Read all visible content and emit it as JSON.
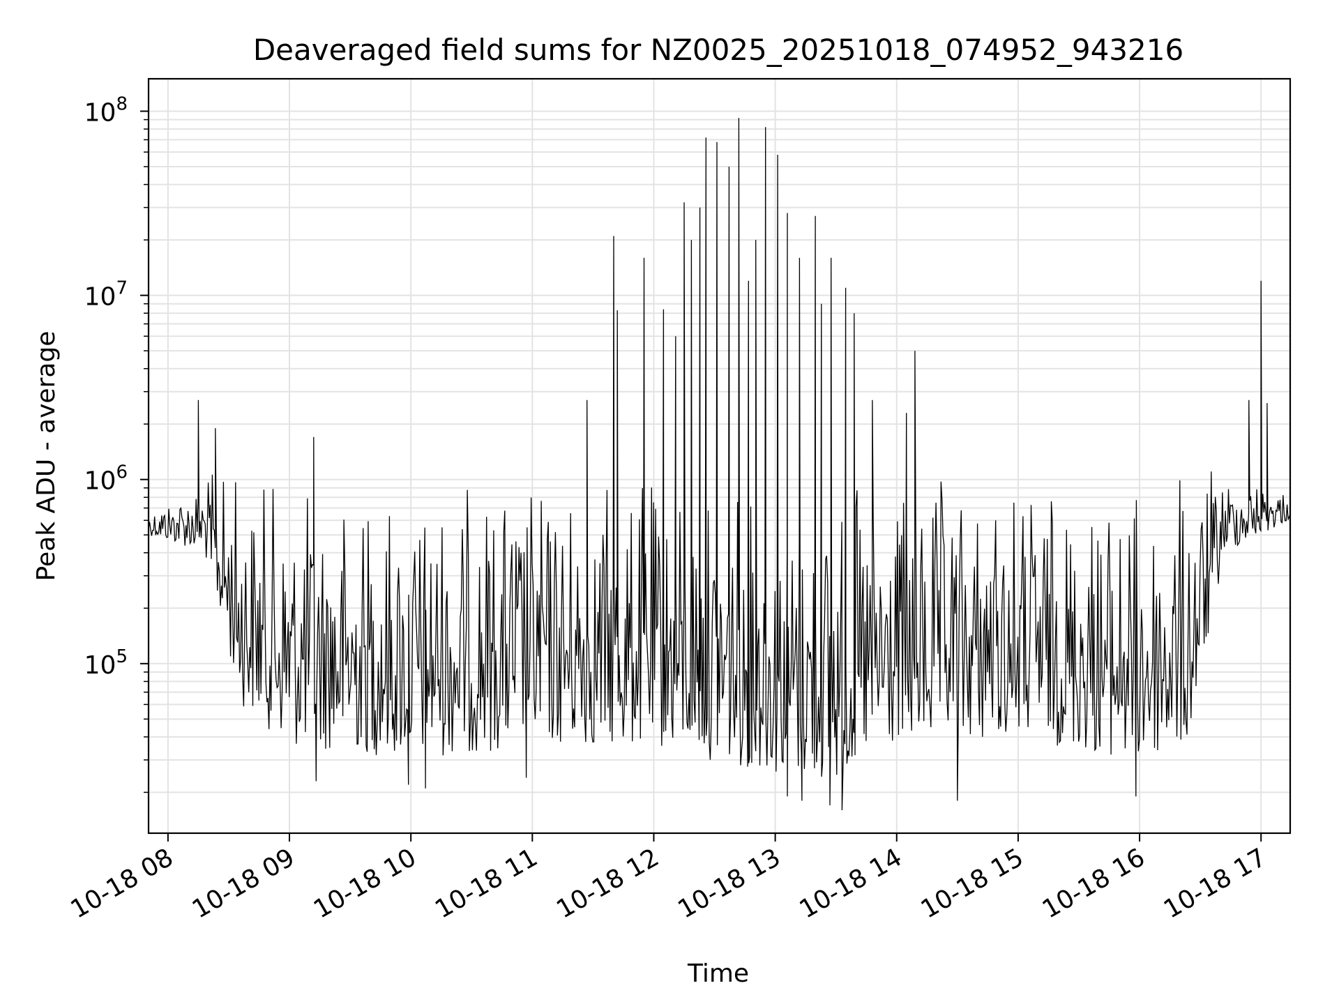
{
  "chart_data": {
    "type": "line",
    "title": "Deaveraged field sums for NZ0025_20251018_074952_943216",
    "xlabel": "Time",
    "ylabel": "Peak ADU - average",
    "yscale": "log",
    "ylim": [
      12000,
      150000000
    ],
    "xlim_hours": [
      7.84,
      17.24
    ],
    "grid": true,
    "x_ticks": [
      {
        "value": 8,
        "label": "10-18 08"
      },
      {
        "value": 9,
        "label": "10-18 09"
      },
      {
        "value": 10,
        "label": "10-18 10"
      },
      {
        "value": 11,
        "label": "10-18 11"
      },
      {
        "value": 12,
        "label": "10-18 12"
      },
      {
        "value": 13,
        "label": "10-18 13"
      },
      {
        "value": 14,
        "label": "10-18 14"
      },
      {
        "value": 15,
        "label": "10-18 15"
      },
      {
        "value": 16,
        "label": "10-18 16"
      },
      {
        "value": 17,
        "label": "10-18 17"
      }
    ],
    "y_ticks": [
      {
        "value": 100000,
        "base": "10",
        "exp": "5"
      },
      {
        "value": 1000000,
        "base": "10",
        "exp": "6"
      },
      {
        "value": 10000000,
        "base": "10",
        "exp": "7"
      },
      {
        "value": 100000000,
        "base": "10",
        "exp": "8"
      }
    ],
    "series": [
      {
        "name": "Peak ADU - average",
        "color": "#000000",
        "samples_per_hour": 120,
        "envelope": {
          "upper_profile": [
            [
              7.84,
              700000
            ],
            [
              8.2,
              1000000
            ],
            [
              8.5,
              1300000
            ],
            [
              9.0,
              1000000
            ],
            [
              10.0,
              1000000
            ],
            [
              11.0,
              1100000
            ],
            [
              12.0,
              1100000
            ],
            [
              13.0,
              950000
            ],
            [
              14.0,
              1000000
            ],
            [
              15.0,
              1100000
            ],
            [
              16.0,
              1000000
            ],
            [
              16.6,
              1200000
            ],
            [
              17.24,
              900000
            ]
          ],
          "lower_profile": [
            [
              7.84,
              500000
            ],
            [
              8.3,
              400000
            ],
            [
              8.6,
              60000
            ],
            [
              9.0,
              35000
            ],
            [
              10.0,
              30000
            ],
            [
              11.0,
              35000
            ],
            [
              12.0,
              35000
            ],
            [
              13.0,
              25000
            ],
            [
              13.5,
              22000
            ],
            [
              14.0,
              35000
            ],
            [
              15.0,
              40000
            ],
            [
              16.0,
              28000
            ],
            [
              16.4,
              35000
            ],
            [
              16.7,
              400000
            ],
            [
              17.24,
              600000
            ]
          ]
        },
        "peaks": [
          {
            "t": 8.25,
            "v": 2700000
          },
          {
            "t": 8.39,
            "v": 1900000
          },
          {
            "t": 9.2,
            "v": 1700000
          },
          {
            "t": 11.45,
            "v": 2700000
          },
          {
            "t": 11.67,
            "v": 21000000
          },
          {
            "t": 11.7,
            "v": 8300000
          },
          {
            "t": 11.92,
            "v": 16000000
          },
          {
            "t": 12.08,
            "v": 8400000
          },
          {
            "t": 12.18,
            "v": 6000000
          },
          {
            "t": 12.25,
            "v": 32000000
          },
          {
            "t": 12.31,
            "v": 20000000
          },
          {
            "t": 12.38,
            "v": 30000000
          },
          {
            "t": 12.43,
            "v": 72000000
          },
          {
            "t": 12.52,
            "v": 68000000
          },
          {
            "t": 12.62,
            "v": 50000000
          },
          {
            "t": 12.7,
            "v": 92000000
          },
          {
            "t": 12.78,
            "v": 12000000
          },
          {
            "t": 12.84,
            "v": 20000000
          },
          {
            "t": 12.92,
            "v": 82000000
          },
          {
            "t": 13.02,
            "v": 58000000
          },
          {
            "t": 13.1,
            "v": 28000000
          },
          {
            "t": 13.2,
            "v": 16000000
          },
          {
            "t": 13.33,
            "v": 27000000
          },
          {
            "t": 13.38,
            "v": 9000000
          },
          {
            "t": 13.46,
            "v": 16000000
          },
          {
            "t": 13.58,
            "v": 11000000
          },
          {
            "t": 13.65,
            "v": 8000000
          },
          {
            "t": 13.8,
            "v": 2700000
          },
          {
            "t": 14.15,
            "v": 5000000
          },
          {
            "t": 14.08,
            "v": 2300000
          },
          {
            "t": 16.9,
            "v": 2700000
          },
          {
            "t": 17.0,
            "v": 12000000
          },
          {
            "t": 17.05,
            "v": 2600000
          }
        ],
        "dips": [
          {
            "t": 9.22,
            "v": 23000
          },
          {
            "t": 9.98,
            "v": 22000
          },
          {
            "t": 10.12,
            "v": 21000
          },
          {
            "t": 10.95,
            "v": 24000
          },
          {
            "t": 13.1,
            "v": 19000
          },
          {
            "t": 13.22,
            "v": 18000
          },
          {
            "t": 13.45,
            "v": 17000
          },
          {
            "t": 13.55,
            "v": 16000
          },
          {
            "t": 14.5,
            "v": 18000
          },
          {
            "t": 15.97,
            "v": 19000
          }
        ]
      }
    ]
  }
}
